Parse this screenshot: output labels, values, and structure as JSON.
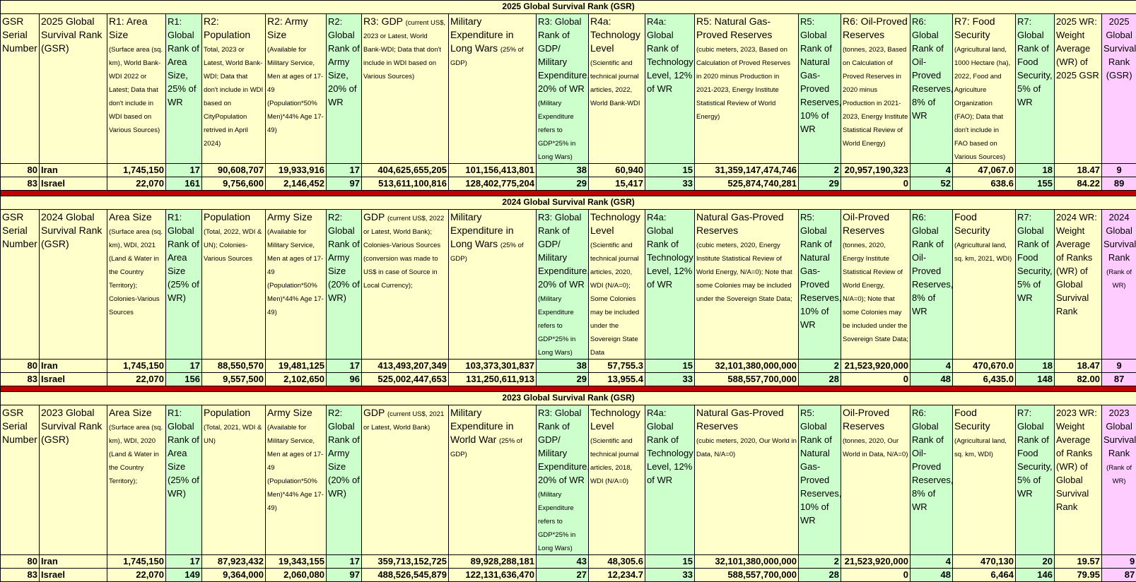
{
  "sections": [
    {
      "title": "2025 Global Survival Rank (GSR)",
      "headers": [
        {
          "main": "GSR Serial Number",
          "sub": ""
        },
        {
          "main": "2025 Global Survival Rank (GSR)",
          "sub": ""
        },
        {
          "main": "R1: Area Size",
          "sub": "(Surface area (sq. km), World Bank-WDI 2022 or Latest; Data that don't include in WDI based on Various Sources)"
        },
        {
          "main": "R1: Global Rank of Area Size, 25% of WR",
          "sub": ""
        },
        {
          "main": "R2: Population",
          "sub": "Total, 2023 or Latest, World Bank-WDI; Data that don't include in WDI based on CityPopulation retrived in April 2024)"
        },
        {
          "main": "R2: Army Size",
          "sub": "(Available for Military Service, Men at ages of 17-49 (Population*50% Men)*44% Age 17-49)"
        },
        {
          "main": "R2: Global Rank of Army Size, 20% of WR",
          "sub": ""
        },
        {
          "main": "R3: GDP",
          "sub": "(current US$, 2023 or Latest, World Bank-WDI; Data that don't include in WDI based on Various Sources)"
        },
        {
          "main": "Military Expenditure in Long Wars",
          "sub": "(25% of GDP)"
        },
        {
          "main": "R3: Global Rank of GDP/ Military Expenditure, 20% of WR",
          "sub": "(Military Expenditure refers to GDP*25% in Long Wars)"
        },
        {
          "main": "R4a: Technology Level",
          "sub": "(Scientific and technical journal articles, 2022, World Bank-WDI"
        },
        {
          "main": "R4a: Global Rank of Technology Level, 12% of WR",
          "sub": ""
        },
        {
          "main": "R5: Natural Gas-Proved Reserves",
          "sub": "(cubic meters, 2023, Based on Calculation of Proved Reserves in 2020 minus Production in 2021-2023, Energy Institute Statistical Review of World Energy)"
        },
        {
          "main": "R5: Global Rank of Natural Gas-Proved Reserves, 10% of WR",
          "sub": ""
        },
        {
          "main": "R6: Oil-Proved Reserves",
          "sub": "(tonnes, 2023, Based on Calculation of Proved Reserves in 2020 minus Production in 2021-2023, Energy Institute Statistical Review of World Energy)"
        },
        {
          "main": "R6: Global Rank of Oil-Proved Reserves, 8% of WR",
          "sub": ""
        },
        {
          "main": "R7: Food Security",
          "sub": "(Agricultural land, 1000 Hectare (ha), 2022, Food and Agriculture Organization (FAO); Data that don't include in FAO based on Various Sources)"
        },
        {
          "main": "R7: Global Rank of Food Security, 5% of WR",
          "sub": ""
        },
        {
          "main": "2025 WR: Weight Average (WR) of 2025 GSR",
          "sub": ""
        },
        {
          "main": "2025 Global Survival Rank (GSR)",
          "sub": ""
        }
      ],
      "rows": [
        [
          "80",
          "Iran",
          "1,745,150",
          "17",
          "90,608,707",
          "19,933,916",
          "17",
          "404,625,655,205",
          "101,156,413,801",
          "38",
          "60,940",
          "15",
          "31,359,147,474,746",
          "2",
          "20,957,190,323",
          "4",
          "47,067.0",
          "18",
          "18.47",
          "9"
        ],
        [
          "83",
          "Israel",
          "22,070",
          "161",
          "9,756,600",
          "2,146,452",
          "97",
          "513,611,100,816",
          "128,402,775,204",
          "29",
          "15,417",
          "33",
          "525,874,740,281",
          "29",
          "0",
          "52",
          "638.6",
          "155",
          "84.22",
          "89"
        ]
      ]
    },
    {
      "title": "2024 Global Survival Rank (GSR)",
      "headers": [
        {
          "main": "GSR Serial Number",
          "sub": ""
        },
        {
          "main": "2024 Global Survival Rank (GSR)",
          "sub": ""
        },
        {
          "main": "Area Size",
          "sub": "(Surface area (sq. km), WDI, 2021 (Land & Water in the Country Territory); Colonies-Various Sources"
        },
        {
          "main": "R1: Global Rank of Area Size (25% of WR)",
          "sub": ""
        },
        {
          "main": "Population",
          "sub": "(Total, 2022, WDI & UN); Colonies-Various Sources"
        },
        {
          "main": "Army Size",
          "sub": "(Available for Military Service, Men at ages of 17-49 (Population*50% Men)*44% Age 17-49)"
        },
        {
          "main": "R2: Global Rank of Army Size (20% of WR)",
          "sub": ""
        },
        {
          "main": "GDP",
          "sub": "(current US$, 2022 or Latest, World Bank); Colonies-Various Sources (conversion was made to US$ in case of Source in Local Currency);"
        },
        {
          "main": "Military Expenditure in Long Wars",
          "sub": "(25% of GDP)"
        },
        {
          "main": "R3: Global Rank of GDP/ Military Expenditure, 20% of WR",
          "sub": "(Military Expenditure refers to GDP*25% in Long Wars)"
        },
        {
          "main": "Technology Level",
          "sub": "(Scientific and technical journal articles, 2020, WDI (N/A=0); Some Colonies may be included under the Sovereign State Data"
        },
        {
          "main": "R4a: Global Rank of Technology Level, 12% of WR",
          "sub": ""
        },
        {
          "main": "Natural Gas-Proved Reserves",
          "sub": "(cubic meters, 2020, Energy Institute Statistical Review of World Energy, N/A=0); Note that some Colonies may be included under the Sovereign State Data;"
        },
        {
          "main": "R5: Global Rank of Natural Gas-Proved Reserves, 10% of WR",
          "sub": ""
        },
        {
          "main": "Oil-Proved Reserves",
          "sub": "(tonnes, 2020, Energy Institute Statistical Review of World Energy, N/A=0); Note that some Colonies may be included under the Sovereign State Data;"
        },
        {
          "main": "R6: Global Rank of Oil-Proved Reserves, 8% of WR",
          "sub": ""
        },
        {
          "main": "Food Security",
          "sub": "(Agricultural land, sq. km, 2021, WDI)"
        },
        {
          "main": "R7: Global Rank of Food Security, 5% of WR",
          "sub": ""
        },
        {
          "main": "2024 WR: Weight Average of Ranks (WR) of Global Survival Rank",
          "sub": ""
        },
        {
          "main": "2024 Global Survival Rank",
          "sub": "(Rank of WR)"
        }
      ],
      "rows": [
        [
          "80",
          "Iran",
          "1,745,150",
          "17",
          "88,550,570",
          "19,481,125",
          "17",
          "413,493,207,349",
          "103,373,301,837",
          "38",
          "57,755.3",
          "15",
          "32,101,380,000,000",
          "2",
          "21,523,920,000",
          "4",
          "470,670.0",
          "18",
          "18.47",
          "9"
        ],
        [
          "83",
          "Israel",
          "22,070",
          "156",
          "9,557,500",
          "2,102,650",
          "96",
          "525,002,447,653",
          "131,250,611,913",
          "29",
          "13,955.4",
          "33",
          "588,557,700,000",
          "28",
          "0",
          "48",
          "6,435.0",
          "148",
          "82.00",
          "87"
        ]
      ]
    },
    {
      "title": "2023 Global Survival Rank (GSR)",
      "headers": [
        {
          "main": "GSR Serial Number",
          "sub": ""
        },
        {
          "main": "2023 Global Survival Rank (GSR)",
          "sub": ""
        },
        {
          "main": "Area Size",
          "sub": "(Surface area (sq. km), WDI, 2020 (Land & Water in the Country Territory);"
        },
        {
          "main": "R1: Global Rank of Area Size (25% of WR)",
          "sub": ""
        },
        {
          "main": "Population",
          "sub": "(Total, 2021, WDI & UN)"
        },
        {
          "main": "Army Size",
          "sub": "(Available for Military Service, Men at ages of 17-49 (Population*50% Men)*44% Age 17-49)"
        },
        {
          "main": "R2: Global Rank of Army Size (20% of WR)",
          "sub": ""
        },
        {
          "main": "GDP",
          "sub": "(current US$, 2021 or Latest, World Bank)"
        },
        {
          "main": "Military Expenditure in World War",
          "sub": "(25% of GDP)"
        },
        {
          "main": "R3: Global Rank of GDP/ Military Expenditure, 20% of WR",
          "sub": "(Military Expenditure refers to GDP*25% in Long Wars)"
        },
        {
          "main": "Technology Level",
          "sub": "(Scientific and technical journal articles, 2018, WDI (N/A=0)"
        },
        {
          "main": "R4a: Global Rank of Technology Level, 12% of WR",
          "sub": ""
        },
        {
          "main": "Natural Gas-Proved Reserves",
          "sub": "(cubic meters, 2020, Our World in Data, N/A=0)"
        },
        {
          "main": "R5: Global Rank of Natural Gas-Proved Reserves, 10% of WR",
          "sub": ""
        },
        {
          "main": "Oil-Proved Reserves",
          "sub": "(tonnes, 2020, Our World in Data, N/A=0)"
        },
        {
          "main": "R6: Global Rank of Oil-Proved Reserves, 8% of WR",
          "sub": ""
        },
        {
          "main": "Food Security",
          "sub": "(Agricultural land, sq. km, WDI)"
        },
        {
          "main": "R7: Global Rank of Food Security, 5% of WR",
          "sub": ""
        },
        {
          "main": "2023 WR: Weight Average of Ranks (WR) of Global Survival Rank",
          "sub": ""
        },
        {
          "main": "2023 Global Survival Rank",
          "sub": "(Rank of WR)"
        }
      ],
      "rows": [
        [
          "80",
          "Iran",
          "1,745,150",
          "17",
          "87,923,432",
          "19,343,155",
          "17",
          "359,713,152,725",
          "89,928,288,181",
          "43",
          "48,305.6",
          "15",
          "32,101,380,000,000",
          "2",
          "21,523,920,000",
          "4",
          "470,130",
          "20",
          "19.57",
          "9"
        ],
        [
          "83",
          "Israel",
          "22,070",
          "149",
          "9,364,000",
          "2,060,080",
          "97",
          "488,526,545,879",
          "122,131,636,470",
          "27",
          "12,234.7",
          "33",
          "588,557,700,000",
          "28",
          "0",
          "48",
          "6,464",
          "146",
          "79.95",
          "87"
        ]
      ]
    }
  ],
  "colors": {
    "yellow": "#ffffcc",
    "green": "#ccffcc",
    "pink": "#ffccff",
    "separator": "#c00000"
  }
}
